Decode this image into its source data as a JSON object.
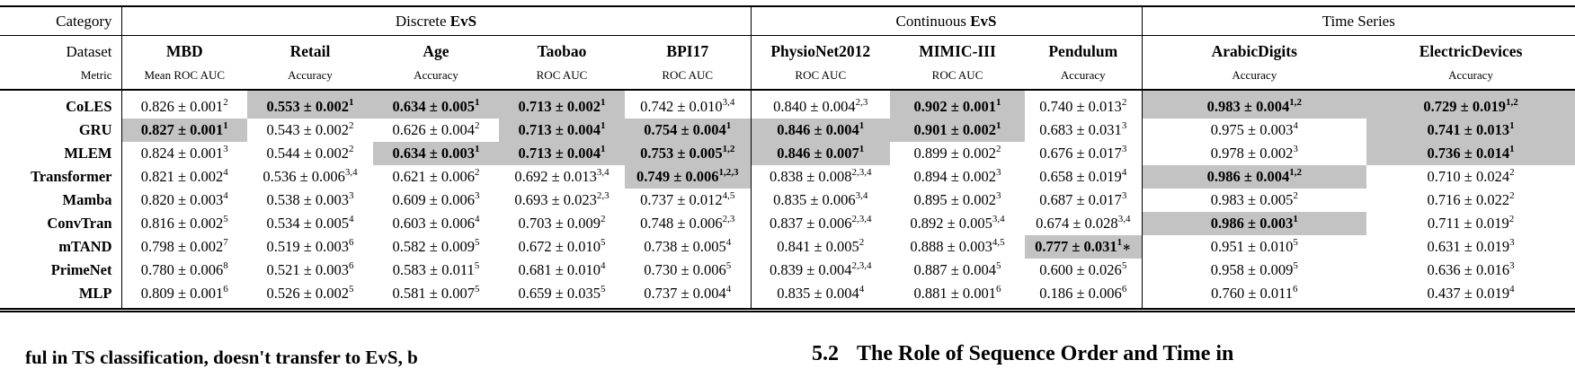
{
  "colors": {
    "highlight": "#c3c3c3",
    "text": "#000000",
    "rule": "#000000"
  },
  "table": {
    "category_label": "Category",
    "dataset_label": "Dataset",
    "metric_label": "Metric",
    "groups": [
      {
        "pre": "Discrete ",
        "bold": "EvS"
      },
      {
        "pre": "Continuous ",
        "bold": "EvS"
      },
      {
        "pre": "Time Series",
        "bold": ""
      }
    ],
    "columns": [
      {
        "dataset": "MBD",
        "metric": "Mean ROC AUC"
      },
      {
        "dataset": "Retail",
        "metric": "Accuracy"
      },
      {
        "dataset": "Age",
        "metric": "Accuracy"
      },
      {
        "dataset": "Taobao",
        "metric": "ROC AUC"
      },
      {
        "dataset": "BPI17",
        "metric": "ROC AUC"
      },
      {
        "dataset": "PhysioNet2012",
        "metric": "ROC AUC"
      },
      {
        "dataset": "MIMIC-III",
        "metric": "ROC AUC"
      },
      {
        "dataset": "Pendulum",
        "metric": "Accuracy"
      },
      {
        "dataset": "ArabicDigits",
        "metric": "Accuracy"
      },
      {
        "dataset": "ElectricDevices",
        "metric": "Accuracy"
      }
    ],
    "rows": [
      {
        "model": "CoLES",
        "cells": [
          {
            "v": "0.826 ± 0.001",
            "s": "2",
            "b": false
          },
          {
            "v": "0.553 ± 0.002",
            "s": "1",
            "b": true
          },
          {
            "v": "0.634 ± 0.005",
            "s": "1",
            "b": true
          },
          {
            "v": "0.713 ± 0.002",
            "s": "1",
            "b": true
          },
          {
            "v": "0.742 ± 0.010",
            "s": "3,4",
            "b": false
          },
          {
            "v": "0.840 ± 0.004",
            "s": "2,3",
            "b": false
          },
          {
            "v": "0.902 ± 0.001",
            "s": "1",
            "b": true
          },
          {
            "v": "0.740 ± 0.013",
            "s": "2",
            "b": false
          },
          {
            "v": "0.983 ± 0.004",
            "s": "1,2",
            "b": true
          },
          {
            "v": "0.729 ± 0.019",
            "s": "1,2",
            "b": true
          }
        ]
      },
      {
        "model": "GRU",
        "cells": [
          {
            "v": "0.827 ± 0.001",
            "s": "1",
            "b": true
          },
          {
            "v": "0.543 ± 0.002",
            "s": "2",
            "b": false
          },
          {
            "v": "0.626 ± 0.004",
            "s": "2",
            "b": false
          },
          {
            "v": "0.713 ± 0.004",
            "s": "1",
            "b": true
          },
          {
            "v": "0.754 ± 0.004",
            "s": "1",
            "b": true
          },
          {
            "v": "0.846 ± 0.004",
            "s": "1",
            "b": true
          },
          {
            "v": "0.901 ± 0.002",
            "s": "1",
            "b": true
          },
          {
            "v": "0.683 ± 0.031",
            "s": "3",
            "b": false
          },
          {
            "v": "0.975 ± 0.003",
            "s": "4",
            "b": false
          },
          {
            "v": "0.741 ± 0.013",
            "s": "1",
            "b": true
          }
        ]
      },
      {
        "model": "MLEM",
        "cells": [
          {
            "v": "0.824 ± 0.001",
            "s": "3",
            "b": false
          },
          {
            "v": "0.544 ± 0.002",
            "s": "2",
            "b": false
          },
          {
            "v": "0.634 ± 0.003",
            "s": "1",
            "b": true
          },
          {
            "v": "0.713 ± 0.004",
            "s": "1",
            "b": true
          },
          {
            "v": "0.753 ± 0.005",
            "s": "1,2",
            "b": true
          },
          {
            "v": "0.846 ± 0.007",
            "s": "1",
            "b": true
          },
          {
            "v": "0.899 ± 0.002",
            "s": "2",
            "b": false
          },
          {
            "v": "0.676 ± 0.017",
            "s": "3",
            "b": false
          },
          {
            "v": "0.978 ± 0.002",
            "s": "3",
            "b": false
          },
          {
            "v": "0.736 ± 0.014",
            "s": "1",
            "b": true
          }
        ]
      },
      {
        "model": "Transformer",
        "cells": [
          {
            "v": "0.821 ± 0.002",
            "s": "4",
            "b": false
          },
          {
            "v": "0.536 ± 0.006",
            "s": "3,4",
            "b": false
          },
          {
            "v": "0.621 ± 0.006",
            "s": "2",
            "b": false
          },
          {
            "v": "0.692 ± 0.013",
            "s": "3,4",
            "b": false
          },
          {
            "v": "0.749 ± 0.006",
            "s": "1,2,3",
            "b": true
          },
          {
            "v": "0.838 ± 0.008",
            "s": "2,3,4",
            "b": false
          },
          {
            "v": "0.894 ± 0.002",
            "s": "3",
            "b": false
          },
          {
            "v": "0.658 ± 0.019",
            "s": "4",
            "b": false
          },
          {
            "v": "0.986 ± 0.004",
            "s": "1,2",
            "b": true
          },
          {
            "v": "0.710 ± 0.024",
            "s": "2",
            "b": false
          }
        ]
      },
      {
        "model": "Mamba",
        "cells": [
          {
            "v": "0.820 ± 0.003",
            "s": "4",
            "b": false
          },
          {
            "v": "0.538 ± 0.003",
            "s": "3",
            "b": false
          },
          {
            "v": "0.609 ± 0.006",
            "s": "3",
            "b": false
          },
          {
            "v": "0.693 ± 0.023",
            "s": "2,3",
            "b": false
          },
          {
            "v": "0.737 ± 0.012",
            "s": "4,5",
            "b": false
          },
          {
            "v": "0.835 ± 0.006",
            "s": "3,4",
            "b": false
          },
          {
            "v": "0.895 ± 0.002",
            "s": "3",
            "b": false
          },
          {
            "v": "0.687 ± 0.017",
            "s": "3",
            "b": false
          },
          {
            "v": "0.983 ± 0.005",
            "s": "2",
            "b": false
          },
          {
            "v": "0.716 ± 0.022",
            "s": "2",
            "b": false
          }
        ]
      },
      {
        "model": "ConvTran",
        "cells": [
          {
            "v": "0.816 ± 0.002",
            "s": "5",
            "b": false
          },
          {
            "v": "0.534 ± 0.005",
            "s": "4",
            "b": false
          },
          {
            "v": "0.603 ± 0.006",
            "s": "4",
            "b": false
          },
          {
            "v": "0.703 ± 0.009",
            "s": "2",
            "b": false
          },
          {
            "v": "0.748 ± 0.006",
            "s": "2,3",
            "b": false
          },
          {
            "v": "0.837 ± 0.006",
            "s": "2,3,4",
            "b": false
          },
          {
            "v": "0.892 ± 0.005",
            "s": "3,4",
            "b": false
          },
          {
            "v": "0.674 ± 0.028",
            "s": "3,4",
            "b": false
          },
          {
            "v": "0.986 ± 0.003",
            "s": "1",
            "b": true
          },
          {
            "v": "0.711 ± 0.019",
            "s": "2",
            "b": false
          }
        ]
      },
      {
        "model": "mTAND",
        "cells": [
          {
            "v": "0.798 ± 0.002",
            "s": "7",
            "b": false
          },
          {
            "v": "0.519 ± 0.003",
            "s": "6",
            "b": false
          },
          {
            "v": "0.582 ± 0.009",
            "s": "5",
            "b": false
          },
          {
            "v": "0.672 ± 0.010",
            "s": "5",
            "b": false
          },
          {
            "v": "0.738 ± 0.005",
            "s": "4",
            "b": false
          },
          {
            "v": "0.841 ± 0.005",
            "s": "2",
            "b": false
          },
          {
            "v": "0.888 ± 0.003",
            "s": "4,5",
            "b": false
          },
          {
            "v": "0.777 ± 0.031",
            "s": "1",
            "b": true,
            "star": "∗"
          },
          {
            "v": "0.951 ± 0.010",
            "s": "5",
            "b": false
          },
          {
            "v": "0.631 ± 0.019",
            "s": "3",
            "b": false
          }
        ]
      },
      {
        "model": "PrimeNet",
        "cells": [
          {
            "v": "0.780 ± 0.006",
            "s": "8",
            "b": false
          },
          {
            "v": "0.521 ± 0.003",
            "s": "6",
            "b": false
          },
          {
            "v": "0.583 ± 0.011",
            "s": "5",
            "b": false
          },
          {
            "v": "0.681 ± 0.010",
            "s": "4",
            "b": false
          },
          {
            "v": "0.730 ± 0.006",
            "s": "5",
            "b": false
          },
          {
            "v": "0.839 ± 0.004",
            "s": "2,3,4",
            "b": false
          },
          {
            "v": "0.887 ± 0.004",
            "s": "5",
            "b": false
          },
          {
            "v": "0.600 ± 0.026",
            "s": "5",
            "b": false
          },
          {
            "v": "0.958 ± 0.009",
            "s": "5",
            "b": false
          },
          {
            "v": "0.636 ± 0.016",
            "s": "3",
            "b": false
          }
        ]
      },
      {
        "model": "MLP",
        "cells": [
          {
            "v": "0.809 ± 0.001",
            "s": "6",
            "b": false
          },
          {
            "v": "0.526 ± 0.002",
            "s": "5",
            "b": false
          },
          {
            "v": "0.581 ± 0.007",
            "s": "5",
            "b": false
          },
          {
            "v": "0.659 ± 0.035",
            "s": "5",
            "b": false
          },
          {
            "v": "0.737 ± 0.004",
            "s": "4",
            "b": false
          },
          {
            "v": "0.835 ± 0.004",
            "s": "4",
            "b": false
          },
          {
            "v": "0.881 ± 0.001",
            "s": "6",
            "b": false
          },
          {
            "v": "0.186 ± 0.006",
            "s": "6",
            "b": false
          },
          {
            "v": "0.760 ± 0.011",
            "s": "6",
            "b": false
          },
          {
            "v": "0.437 ± 0.019",
            "s": "4",
            "b": false
          }
        ]
      }
    ]
  },
  "footer": {
    "left_text": "ful in TS classification, doesn't transfer to EvS, b",
    "section_number": "5.2",
    "section_title": "The Role of Sequence Order and Time in"
  }
}
